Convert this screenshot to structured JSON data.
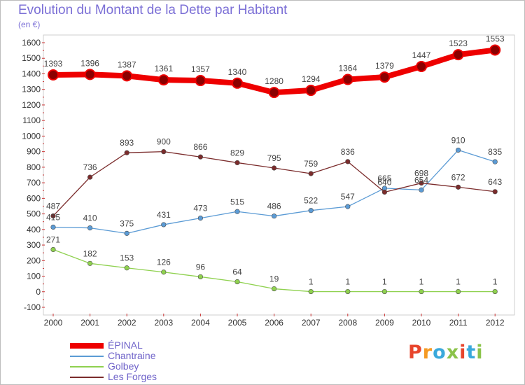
{
  "header": {
    "title": "Evolution du Montant de la Dette par Habitant",
    "unit": "(en €)"
  },
  "logo": {
    "text": "Proxiti",
    "colors": [
      "#e8452c",
      "#f59a23",
      "#3aa9db",
      "#8bc34a",
      "#e8452c",
      "#3aa9db",
      "#8bc34a"
    ]
  },
  "chart_data": {
    "type": "line",
    "title": "Evolution du Montant de la Dette par Habitant",
    "subtitle": "(en €)",
    "x": [
      "2000",
      "2001",
      "2002",
      "2003",
      "2004",
      "2005",
      "2006",
      "2007",
      "2008",
      "2009",
      "2010",
      "2011",
      "2012"
    ],
    "ylim": [
      -100,
      1600
    ],
    "yticks": [
      -100,
      0,
      100,
      200,
      300,
      400,
      500,
      600,
      700,
      800,
      900,
      1000,
      1100,
      1200,
      1300,
      1400,
      1500,
      1600
    ],
    "grid": false,
    "legend_position": "bottom-left",
    "series": [
      {
        "name": "ÉPINAL",
        "color": "#ee0000",
        "emphasis": "thick",
        "values": [
          1393,
          1396,
          1387,
          1361,
          1357,
          1340,
          1280,
          1294,
          1364,
          1379,
          1447,
          1523,
          1553
        ]
      },
      {
        "name": "Chantraine",
        "color": "#5b9bd5",
        "emphasis": "thin",
        "values": [
          415,
          410,
          375,
          431,
          473,
          515,
          486,
          522,
          547,
          665,
          654,
          910,
          835
        ]
      },
      {
        "name": "Golbey",
        "color": "#8fd14f",
        "emphasis": "thin",
        "values": [
          271,
          182,
          153,
          126,
          96,
          64,
          19,
          1,
          1,
          1,
          1,
          1,
          1
        ]
      },
      {
        "name": "Les Forges",
        "color": "#7b2c2c",
        "emphasis": "thin",
        "values": [
          487,
          736,
          893,
          900,
          866,
          829,
          795,
          759,
          836,
          640,
          698,
          672,
          643
        ]
      }
    ]
  }
}
